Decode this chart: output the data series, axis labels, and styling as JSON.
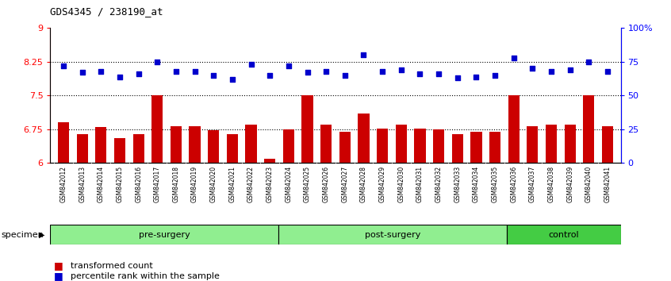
{
  "title": "GDS4345 / 238190_at",
  "categories": [
    "GSM842012",
    "GSM842013",
    "GSM842014",
    "GSM842015",
    "GSM842016",
    "GSM842017",
    "GSM842018",
    "GSM842019",
    "GSM842020",
    "GSM842021",
    "GSM842022",
    "GSM842023",
    "GSM842024",
    "GSM842025",
    "GSM842026",
    "GSM842027",
    "GSM842028",
    "GSM842029",
    "GSM842030",
    "GSM842031",
    "GSM842032",
    "GSM842033",
    "GSM842034",
    "GSM842035",
    "GSM842036",
    "GSM842037",
    "GSM842038",
    "GSM842039",
    "GSM842040",
    "GSM842041"
  ],
  "bar_values": [
    6.9,
    6.65,
    6.8,
    6.55,
    6.65,
    7.5,
    6.82,
    6.82,
    6.73,
    6.65,
    6.85,
    6.1,
    6.75,
    7.5,
    6.85,
    6.7,
    7.1,
    6.77,
    6.85,
    6.76,
    6.75,
    6.65,
    6.7,
    6.7,
    7.5,
    6.82,
    6.85,
    6.85,
    7.5,
    6.82
  ],
  "percentile_values": [
    72,
    67,
    68,
    64,
    66,
    75,
    68,
    68,
    65,
    62,
    73,
    65,
    72,
    67,
    68,
    65,
    80,
    68,
    69,
    66,
    66,
    63,
    64,
    65,
    78,
    70,
    68,
    69,
    75,
    68
  ],
  "bar_color": "#CC0000",
  "dot_color": "#0000CC",
  "ylim_left": [
    6,
    9
  ],
  "ylim_right": [
    0,
    100
  ],
  "yticks_left": [
    6,
    6.75,
    7.5,
    8.25,
    9
  ],
  "yticks_right": [
    0,
    25,
    50,
    75,
    100
  ],
  "ytick_labels_right": [
    "0",
    "25",
    "50",
    "75",
    "100%"
  ],
  "hlines": [
    6.75,
    7.5,
    8.25
  ],
  "group_defs": [
    {
      "start": 0,
      "end": 12,
      "label": "pre-surgery",
      "color": "#90EE90"
    },
    {
      "start": 12,
      "end": 24,
      "label": "post-surgery",
      "color": "#90EE90"
    },
    {
      "start": 24,
      "end": 30,
      "label": "control",
      "color": "#44CC44"
    }
  ],
  "legend_items": [
    {
      "label": "transformed count",
      "color": "#CC0000"
    },
    {
      "label": "percentile rank within the sample",
      "color": "#0000CC"
    }
  ],
  "specimen_label": "specimen"
}
